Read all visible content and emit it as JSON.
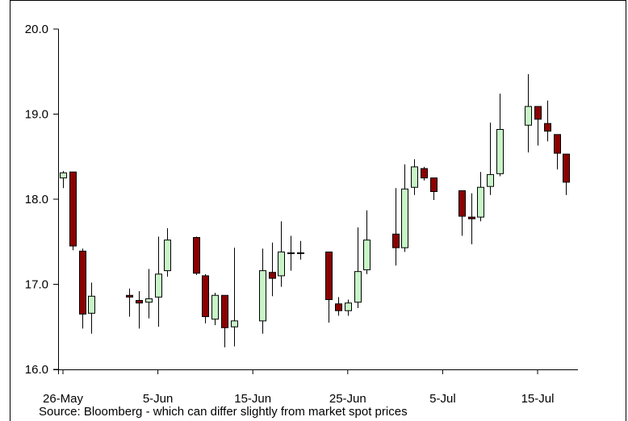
{
  "chart_data": {
    "type": "candlestick",
    "title": "",
    "xlabel": "",
    "ylabel": "",
    "ylim": [
      16.0,
      20.0
    ],
    "y_ticks": [
      "16.0",
      "17.0",
      "18.0",
      "19.0",
      "20.0"
    ],
    "x_ticks": [
      "26-May",
      "5-Jun",
      "15-Jun",
      "25-Jun",
      "5-Jul",
      "15-Jul"
    ],
    "grid": false,
    "colors": {
      "up": "#c8f5c8",
      "down": "#8b0000",
      "frame": "#000000"
    },
    "candles": [
      {
        "date": "26-May",
        "open": 18.25,
        "high": 18.33,
        "low": 18.13,
        "close": 18.31
      },
      {
        "date": "27-May",
        "open": 18.32,
        "high": 18.32,
        "low": 17.4,
        "close": 17.45
      },
      {
        "date": "28-May",
        "open": 17.39,
        "high": 17.42,
        "low": 16.48,
        "close": 16.65
      },
      {
        "date": "29-May",
        "open": 16.66,
        "high": 17.02,
        "low": 16.42,
        "close": 16.86
      },
      {
        "date": "2-Jun",
        "open": 16.87,
        "high": 16.95,
        "low": 16.62,
        "close": 16.85
      },
      {
        "date": "3-Jun",
        "open": 16.81,
        "high": 16.92,
        "low": 16.48,
        "close": 16.78
      },
      {
        "date": "4-Jun",
        "open": 16.79,
        "high": 17.18,
        "low": 16.6,
        "close": 16.83
      },
      {
        "date": "5-Jun",
        "open": 16.85,
        "high": 17.56,
        "low": 16.5,
        "close": 17.12
      },
      {
        "date": "6-Jun",
        "open": 17.16,
        "high": 17.66,
        "low": 17.09,
        "close": 17.52
      },
      {
        "date": "9-Jun",
        "open": 17.55,
        "high": 17.56,
        "low": 17.11,
        "close": 17.13
      },
      {
        "date": "10-Jun",
        "open": 17.1,
        "high": 17.12,
        "low": 16.54,
        "close": 16.62
      },
      {
        "date": "11-Jun",
        "open": 16.59,
        "high": 16.9,
        "low": 16.52,
        "close": 16.87
      },
      {
        "date": "12-Jun",
        "open": 16.87,
        "high": 16.87,
        "low": 16.26,
        "close": 16.49
      },
      {
        "date": "13-Jun",
        "open": 16.5,
        "high": 17.43,
        "low": 16.27,
        "close": 16.57
      },
      {
        "date": "16-Jun",
        "open": 16.57,
        "high": 17.42,
        "low": 16.42,
        "close": 17.16
      },
      {
        "date": "17-Jun",
        "open": 17.14,
        "high": 17.49,
        "low": 16.86,
        "close": 17.07
      },
      {
        "date": "18-Jun",
        "open": 17.1,
        "high": 17.74,
        "low": 16.97,
        "close": 17.38
      },
      {
        "date": "19-Jun",
        "open": 17.36,
        "high": 17.57,
        "low": 17.16,
        "close": 17.37
      },
      {
        "date": "20-Jun",
        "open": 17.37,
        "high": 17.51,
        "low": 17.29,
        "close": 17.37
      },
      {
        "date": "23-Jun",
        "open": 17.38,
        "high": 17.38,
        "low": 16.55,
        "close": 16.82
      },
      {
        "date": "24-Jun",
        "open": 16.77,
        "high": 16.85,
        "low": 16.63,
        "close": 16.69
      },
      {
        "date": "25-Jun",
        "open": 16.69,
        "high": 16.82,
        "low": 16.63,
        "close": 16.78
      },
      {
        "date": "26-Jun",
        "open": 16.79,
        "high": 17.67,
        "low": 16.72,
        "close": 17.15
      },
      {
        "date": "27-Jun",
        "open": 17.17,
        "high": 17.87,
        "low": 17.12,
        "close": 17.52
      },
      {
        "date": "30-Jun",
        "open": 17.59,
        "high": 18.13,
        "low": 17.22,
        "close": 17.43
      },
      {
        "date": "1-Jul",
        "open": 17.43,
        "high": 18.41,
        "low": 17.38,
        "close": 18.12
      },
      {
        "date": "2-Jul",
        "open": 18.14,
        "high": 18.47,
        "low": 18.05,
        "close": 18.38
      },
      {
        "date": "3-Jul",
        "open": 18.36,
        "high": 18.38,
        "low": 18.22,
        "close": 18.25
      },
      {
        "date": "4-Jul",
        "open": 18.25,
        "high": 18.25,
        "low": 17.99,
        "close": 18.09
      },
      {
        "date": "7-Jul",
        "open": 18.1,
        "high": 18.1,
        "low": 17.57,
        "close": 17.8
      },
      {
        "date": "8-Jul",
        "open": 17.79,
        "high": 18.07,
        "low": 17.47,
        "close": 17.77
      },
      {
        "date": "9-Jul",
        "open": 17.79,
        "high": 18.32,
        "low": 17.74,
        "close": 18.14
      },
      {
        "date": "10-Jul",
        "open": 18.15,
        "high": 18.9,
        "low": 18.05,
        "close": 18.29
      },
      {
        "date": "11-Jul",
        "open": 18.3,
        "high": 19.24,
        "low": 18.27,
        "close": 18.82
      },
      {
        "date": "14-Jul",
        "open": 18.87,
        "high": 19.47,
        "low": 18.55,
        "close": 19.09
      },
      {
        "date": "15-Jul",
        "open": 19.09,
        "high": 19.09,
        "low": 18.63,
        "close": 18.94
      },
      {
        "date": "16-Jul",
        "open": 18.89,
        "high": 19.16,
        "low": 18.68,
        "close": 18.8
      },
      {
        "date": "17-Jul",
        "open": 18.76,
        "high": 18.76,
        "low": 18.35,
        "close": 18.54
      },
      {
        "date": "18-Jul",
        "open": 18.53,
        "high": 18.53,
        "low": 18.05,
        "close": 18.2
      }
    ]
  },
  "source_note": "Source: Bloomberg - which can differ slightly from market spot prices"
}
